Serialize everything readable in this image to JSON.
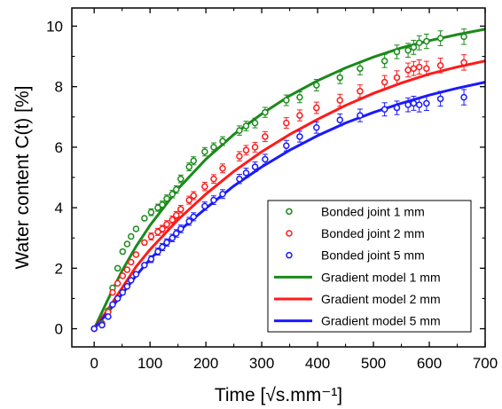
{
  "chart_data": {
    "type": "scatter",
    "xlabel": "Time [√s.mm⁻¹]",
    "ylabel": "Water content C(t) [%]",
    "xlim": [
      -40,
      700
    ],
    "ylim": [
      -0.6,
      10.6
    ],
    "x_ticks": [
      0,
      100,
      200,
      300,
      400,
      500,
      600,
      700
    ],
    "y_ticks": [
      0,
      2,
      4,
      6,
      8,
      10
    ],
    "legend_position": "bottom-right",
    "grid": false,
    "colors": {
      "green": "#1a8a1a",
      "red": "#ff1a1a",
      "blue": "#1a1aff"
    },
    "series": [
      {
        "name": "Bonded joint 1 mm",
        "kind": "points",
        "color": "#1a8a1a",
        "points": [
          {
            "x": 0,
            "y": 0
          },
          {
            "x": 14,
            "y": 0.18
          },
          {
            "x": 25,
            "y": 0.6
          },
          {
            "x": 33,
            "y": 1.35
          },
          {
            "x": 42,
            "y": 2.0
          },
          {
            "x": 51,
            "y": 2.55
          },
          {
            "x": 59,
            "y": 2.8
          },
          {
            "x": 66,
            "y": 3.05
          },
          {
            "x": 75,
            "y": 3.3
          },
          {
            "x": 90,
            "y": 3.65
          },
          {
            "x": 102,
            "y": 3.85
          },
          {
            "x": 114,
            "y": 4.0
          },
          {
            "x": 122,
            "y": 4.1
          },
          {
            "x": 130,
            "y": 4.3
          },
          {
            "x": 140,
            "y": 4.45
          },
          {
            "x": 147,
            "y": 4.6
          },
          {
            "x": 155,
            "y": 4.95
          },
          {
            "x": 170,
            "y": 5.35
          },
          {
            "x": 178,
            "y": 5.55
          },
          {
            "x": 198,
            "y": 5.85
          },
          {
            "x": 214,
            "y": 6.0
          },
          {
            "x": 230,
            "y": 6.2
          },
          {
            "x": 260,
            "y": 6.55
          },
          {
            "x": 272,
            "y": 6.7
          },
          {
            "x": 288,
            "y": 6.8
          },
          {
            "x": 306,
            "y": 7.15
          },
          {
            "x": 344,
            "y": 7.55
          },
          {
            "x": 368,
            "y": 7.65
          },
          {
            "x": 398,
            "y": 8.05
          },
          {
            "x": 440,
            "y": 8.3
          },
          {
            "x": 476,
            "y": 8.6
          },
          {
            "x": 520,
            "y": 8.85
          },
          {
            "x": 542,
            "y": 9.15
          },
          {
            "x": 562,
            "y": 9.2
          },
          {
            "x": 572,
            "y": 9.3
          },
          {
            "x": 582,
            "y": 9.45
          },
          {
            "x": 595,
            "y": 9.5
          },
          {
            "x": 620,
            "y": 9.6
          },
          {
            "x": 662,
            "y": 9.65
          }
        ]
      },
      {
        "name": "Bonded joint 2 mm",
        "kind": "points",
        "color": "#ff1a1a",
        "points": [
          {
            "x": 0,
            "y": 0
          },
          {
            "x": 14,
            "y": 0.15
          },
          {
            "x": 25,
            "y": 0.55
          },
          {
            "x": 33,
            "y": 1.2
          },
          {
            "x": 42,
            "y": 1.5
          },
          {
            "x": 51,
            "y": 1.75
          },
          {
            "x": 59,
            "y": 1.95
          },
          {
            "x": 66,
            "y": 2.2
          },
          {
            "x": 75,
            "y": 2.45
          },
          {
            "x": 90,
            "y": 2.85
          },
          {
            "x": 102,
            "y": 3.05
          },
          {
            "x": 114,
            "y": 3.2
          },
          {
            "x": 122,
            "y": 3.3
          },
          {
            "x": 130,
            "y": 3.45
          },
          {
            "x": 140,
            "y": 3.6
          },
          {
            "x": 147,
            "y": 3.75
          },
          {
            "x": 155,
            "y": 3.95
          },
          {
            "x": 170,
            "y": 4.25
          },
          {
            "x": 178,
            "y": 4.4
          },
          {
            "x": 198,
            "y": 4.7
          },
          {
            "x": 214,
            "y": 4.95
          },
          {
            "x": 230,
            "y": 5.3
          },
          {
            "x": 260,
            "y": 5.7
          },
          {
            "x": 272,
            "y": 5.9
          },
          {
            "x": 288,
            "y": 6.0
          },
          {
            "x": 306,
            "y": 6.35
          },
          {
            "x": 344,
            "y": 6.8
          },
          {
            "x": 368,
            "y": 7.05
          },
          {
            "x": 398,
            "y": 7.3
          },
          {
            "x": 440,
            "y": 7.55
          },
          {
            "x": 476,
            "y": 7.85
          },
          {
            "x": 520,
            "y": 8.15
          },
          {
            "x": 542,
            "y": 8.3
          },
          {
            "x": 562,
            "y": 8.55
          },
          {
            "x": 572,
            "y": 8.6
          },
          {
            "x": 582,
            "y": 8.65
          },
          {
            "x": 595,
            "y": 8.6
          },
          {
            "x": 620,
            "y": 8.7
          },
          {
            "x": 662,
            "y": 8.8
          }
        ]
      },
      {
        "name": "Bonded joint 5 mm",
        "kind": "points",
        "color": "#1a1aff",
        "points": [
          {
            "x": 0,
            "y": 0
          },
          {
            "x": 14,
            "y": 0.12
          },
          {
            "x": 25,
            "y": 0.4
          },
          {
            "x": 33,
            "y": 0.8
          },
          {
            "x": 42,
            "y": 1.0
          },
          {
            "x": 51,
            "y": 1.2
          },
          {
            "x": 59,
            "y": 1.4
          },
          {
            "x": 66,
            "y": 1.6
          },
          {
            "x": 75,
            "y": 1.8
          },
          {
            "x": 90,
            "y": 2.1
          },
          {
            "x": 102,
            "y": 2.3
          },
          {
            "x": 114,
            "y": 2.55
          },
          {
            "x": 122,
            "y": 2.7
          },
          {
            "x": 130,
            "y": 2.85
          },
          {
            "x": 140,
            "y": 3.0
          },
          {
            "x": 147,
            "y": 3.15
          },
          {
            "x": 155,
            "y": 3.3
          },
          {
            "x": 170,
            "y": 3.55
          },
          {
            "x": 178,
            "y": 3.7
          },
          {
            "x": 198,
            "y": 4.05
          },
          {
            "x": 214,
            "y": 4.25
          },
          {
            "x": 230,
            "y": 4.45
          },
          {
            "x": 260,
            "y": 4.95
          },
          {
            "x": 272,
            "y": 5.15
          },
          {
            "x": 288,
            "y": 5.35
          },
          {
            "x": 306,
            "y": 5.6
          },
          {
            "x": 344,
            "y": 6.05
          },
          {
            "x": 368,
            "y": 6.35
          },
          {
            "x": 398,
            "y": 6.65
          },
          {
            "x": 440,
            "y": 6.9
          },
          {
            "x": 476,
            "y": 7.05
          },
          {
            "x": 520,
            "y": 7.25
          },
          {
            "x": 542,
            "y": 7.3
          },
          {
            "x": 562,
            "y": 7.4
          },
          {
            "x": 572,
            "y": 7.45
          },
          {
            "x": 582,
            "y": 7.4
          },
          {
            "x": 595,
            "y": 7.45
          },
          {
            "x": 620,
            "y": 7.6
          },
          {
            "x": 662,
            "y": 7.65
          }
        ]
      },
      {
        "name": "Gradient model 1 mm",
        "kind": "line",
        "color": "#1a8a1a",
        "x": [
          0,
          25,
          50,
          75,
          100,
          150,
          200,
          250,
          300,
          350,
          400,
          450,
          500,
          550,
          600,
          650,
          700
        ],
        "y": [
          0,
          0.98,
          1.92,
          2.72,
          3.42,
          4.62,
          5.6,
          6.42,
          7.1,
          7.7,
          8.2,
          8.62,
          8.98,
          9.28,
          9.52,
          9.72,
          9.9
        ]
      },
      {
        "name": "Gradient model 2 mm",
        "kind": "line",
        "color": "#ff1a1a",
        "x": [
          0,
          25,
          50,
          75,
          100,
          150,
          200,
          250,
          300,
          350,
          400,
          450,
          500,
          550,
          600,
          650,
          700
        ],
        "y": [
          0,
          0.65,
          1.35,
          2.05,
          2.62,
          3.6,
          4.45,
          5.2,
          5.85,
          6.42,
          6.92,
          7.38,
          7.78,
          8.12,
          8.42,
          8.65,
          8.85
        ]
      },
      {
        "name": "Gradient model 5 mm",
        "kind": "line",
        "color": "#1a1aff",
        "x": [
          0,
          25,
          50,
          75,
          100,
          150,
          200,
          250,
          300,
          350,
          400,
          450,
          500,
          550,
          600,
          650,
          700
        ],
        "y": [
          0,
          0.55,
          1.15,
          1.75,
          2.3,
          3.2,
          3.98,
          4.72,
          5.35,
          5.9,
          6.38,
          6.8,
          7.15,
          7.45,
          7.72,
          7.95,
          8.15
        ]
      }
    ]
  }
}
